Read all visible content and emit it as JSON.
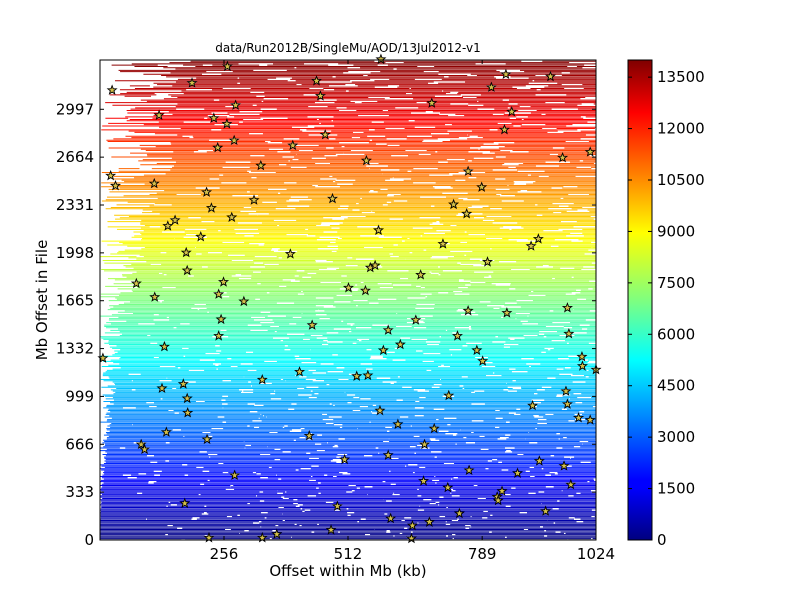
{
  "chart_data": {
    "type": "scatter",
    "title": "data/Run2012B/SingleMu/AOD/13Jul2012-v1",
    "xlabel": "Offset within Mb (kb)",
    "ylabel": "Mb Offset in File",
    "xlim": [
      0,
      1024
    ],
    "ylim": [
      0,
      3340
    ],
    "x_ticks": [
      256,
      512,
      789,
      1024
    ],
    "y_ticks": [
      0,
      333,
      666,
      999,
      1332,
      1665,
      1998,
      2331,
      2664,
      2997
    ],
    "colorbar": {
      "colormap": "jet",
      "range": [
        0,
        14000
      ],
      "ticks": [
        0,
        1500,
        3000,
        4500,
        6000,
        7500,
        9000,
        10500,
        12000,
        13500
      ]
    },
    "background_read_segments": {
      "mb_range": [
        0,
        3340
      ],
      "read_ordinal_range": [
        0,
        14000
      ],
      "coverage": "almost every Mb fully read, fewer segments toward top-left"
    },
    "markers": [
      {
        "x": 6,
        "y": 1265
      },
      {
        "x": 25,
        "y": 3130
      },
      {
        "x": 22,
        "y": 2535
      },
      {
        "x": 32,
        "y": 2465
      },
      {
        "x": 75,
        "y": 1785
      },
      {
        "x": 85,
        "y": 665
      },
      {
        "x": 92,
        "y": 630
      },
      {
        "x": 112,
        "y": 2480
      },
      {
        "x": 113,
        "y": 1690
      },
      {
        "x": 122,
        "y": 2955
      },
      {
        "x": 128,
        "y": 1055
      },
      {
        "x": 133,
        "y": 1345
      },
      {
        "x": 137,
        "y": 750
      },
      {
        "x": 140,
        "y": 2185
      },
      {
        "x": 155,
        "y": 2225
      },
      {
        "x": 172,
        "y": 1085
      },
      {
        "x": 175,
        "y": 255
      },
      {
        "x": 178,
        "y": 2000
      },
      {
        "x": 180,
        "y": 1875
      },
      {
        "x": 180,
        "y": 985
      },
      {
        "x": 181,
        "y": 885
      },
      {
        "x": 190,
        "y": 3180
      },
      {
        "x": 208,
        "y": 2110
      },
      {
        "x": 220,
        "y": 2420
      },
      {
        "x": 221,
        "y": 700
      },
      {
        "x": 225,
        "y": 15
      },
      {
        "x": 230,
        "y": 2310
      },
      {
        "x": 235,
        "y": 2935
      },
      {
        "x": 243,
        "y": 2730
      },
      {
        "x": 245,
        "y": 1710
      },
      {
        "x": 245,
        "y": 1420
      },
      {
        "x": 250,
        "y": 1535
      },
      {
        "x": 255,
        "y": 1795
      },
      {
        "x": 262,
        "y": 2895
      },
      {
        "x": 263,
        "y": 3295
      },
      {
        "x": 272,
        "y": 2245
      },
      {
        "x": 277,
        "y": 2780
      },
      {
        "x": 280,
        "y": 3025
      },
      {
        "x": 278,
        "y": 450
      },
      {
        "x": 297,
        "y": 1660
      },
      {
        "x": 318,
        "y": 2365
      },
      {
        "x": 332,
        "y": 2605
      },
      {
        "x": 335,
        "y": 1115
      },
      {
        "x": 335,
        "y": 15
      },
      {
        "x": 365,
        "y": 40
      },
      {
        "x": 393,
        "y": 1990
      },
      {
        "x": 398,
        "y": 2745
      },
      {
        "x": 412,
        "y": 1170
      },
      {
        "x": 432,
        "y": 725
      },
      {
        "x": 438,
        "y": 1495
      },
      {
        "x": 447,
        "y": 3195
      },
      {
        "x": 455,
        "y": 3090
      },
      {
        "x": 465,
        "y": 2820
      },
      {
        "x": 477,
        "y": 70
      },
      {
        "x": 480,
        "y": 2375
      },
      {
        "x": 490,
        "y": 235
      },
      {
        "x": 505,
        "y": 560
      },
      {
        "x": 513,
        "y": 1755
      },
      {
        "x": 530,
        "y": 1140
      },
      {
        "x": 548,
        "y": 1735
      },
      {
        "x": 550,
        "y": 2640
      },
      {
        "x": 553,
        "y": 1145
      },
      {
        "x": 558,
        "y": 1895
      },
      {
        "x": 568,
        "y": 1910
      },
      {
        "x": 575,
        "y": 2155
      },
      {
        "x": 578,
        "y": 900
      },
      {
        "x": 580,
        "y": 3345
      },
      {
        "x": 585,
        "y": 1320
      },
      {
        "x": 595,
        "y": 590
      },
      {
        "x": 595,
        "y": 1460
      },
      {
        "x": 600,
        "y": 150
      },
      {
        "x": 615,
        "y": 805
      },
      {
        "x": 620,
        "y": 1360
      },
      {
        "x": 643,
        "y": 10
      },
      {
        "x": 645,
        "y": 100
      },
      {
        "x": 652,
        "y": 1530
      },
      {
        "x": 662,
        "y": 1845
      },
      {
        "x": 670,
        "y": 665
      },
      {
        "x": 668,
        "y": 410
      },
      {
        "x": 680,
        "y": 125
      },
      {
        "x": 685,
        "y": 3040
      },
      {
        "x": 690,
        "y": 775
      },
      {
        "x": 708,
        "y": 2060
      },
      {
        "x": 718,
        "y": 365
      },
      {
        "x": 720,
        "y": 1005
      },
      {
        "x": 730,
        "y": 2335
      },
      {
        "x": 738,
        "y": 1420
      },
      {
        "x": 742,
        "y": 185
      },
      {
        "x": 757,
        "y": 2270
      },
      {
        "x": 760,
        "y": 2565
      },
      {
        "x": 760,
        "y": 1595
      },
      {
        "x": 762,
        "y": 485
      },
      {
        "x": 778,
        "y": 1320
      },
      {
        "x": 788,
        "y": 2455
      },
      {
        "x": 790,
        "y": 1245
      },
      {
        "x": 800,
        "y": 1935
      },
      {
        "x": 808,
        "y": 3150
      },
      {
        "x": 820,
        "y": 300
      },
      {
        "x": 822,
        "y": 275
      },
      {
        "x": 830,
        "y": 340
      },
      {
        "x": 835,
        "y": 2855
      },
      {
        "x": 838,
        "y": 3240
      },
      {
        "x": 840,
        "y": 1580
      },
      {
        "x": 850,
        "y": 2980
      },
      {
        "x": 862,
        "y": 465
      },
      {
        "x": 890,
        "y": 2045
      },
      {
        "x": 893,
        "y": 935
      },
      {
        "x": 905,
        "y": 2095
      },
      {
        "x": 907,
        "y": 550
      },
      {
        "x": 920,
        "y": 200
      },
      {
        "x": 930,
        "y": 3225
      },
      {
        "x": 955,
        "y": 2660
      },
      {
        "x": 958,
        "y": 515
      },
      {
        "x": 962,
        "y": 1035
      },
      {
        "x": 965,
        "y": 1615
      },
      {
        "x": 965,
        "y": 945
      },
      {
        "x": 968,
        "y": 1435
      },
      {
        "x": 972,
        "y": 385
      },
      {
        "x": 988,
        "y": 850
      },
      {
        "x": 995,
        "y": 1275
      },
      {
        "x": 996,
        "y": 1210
      },
      {
        "x": 1012,
        "y": 835
      },
      {
        "x": 1012,
        "y": 2700
      },
      {
        "x": 1024,
        "y": 1185
      }
    ]
  }
}
